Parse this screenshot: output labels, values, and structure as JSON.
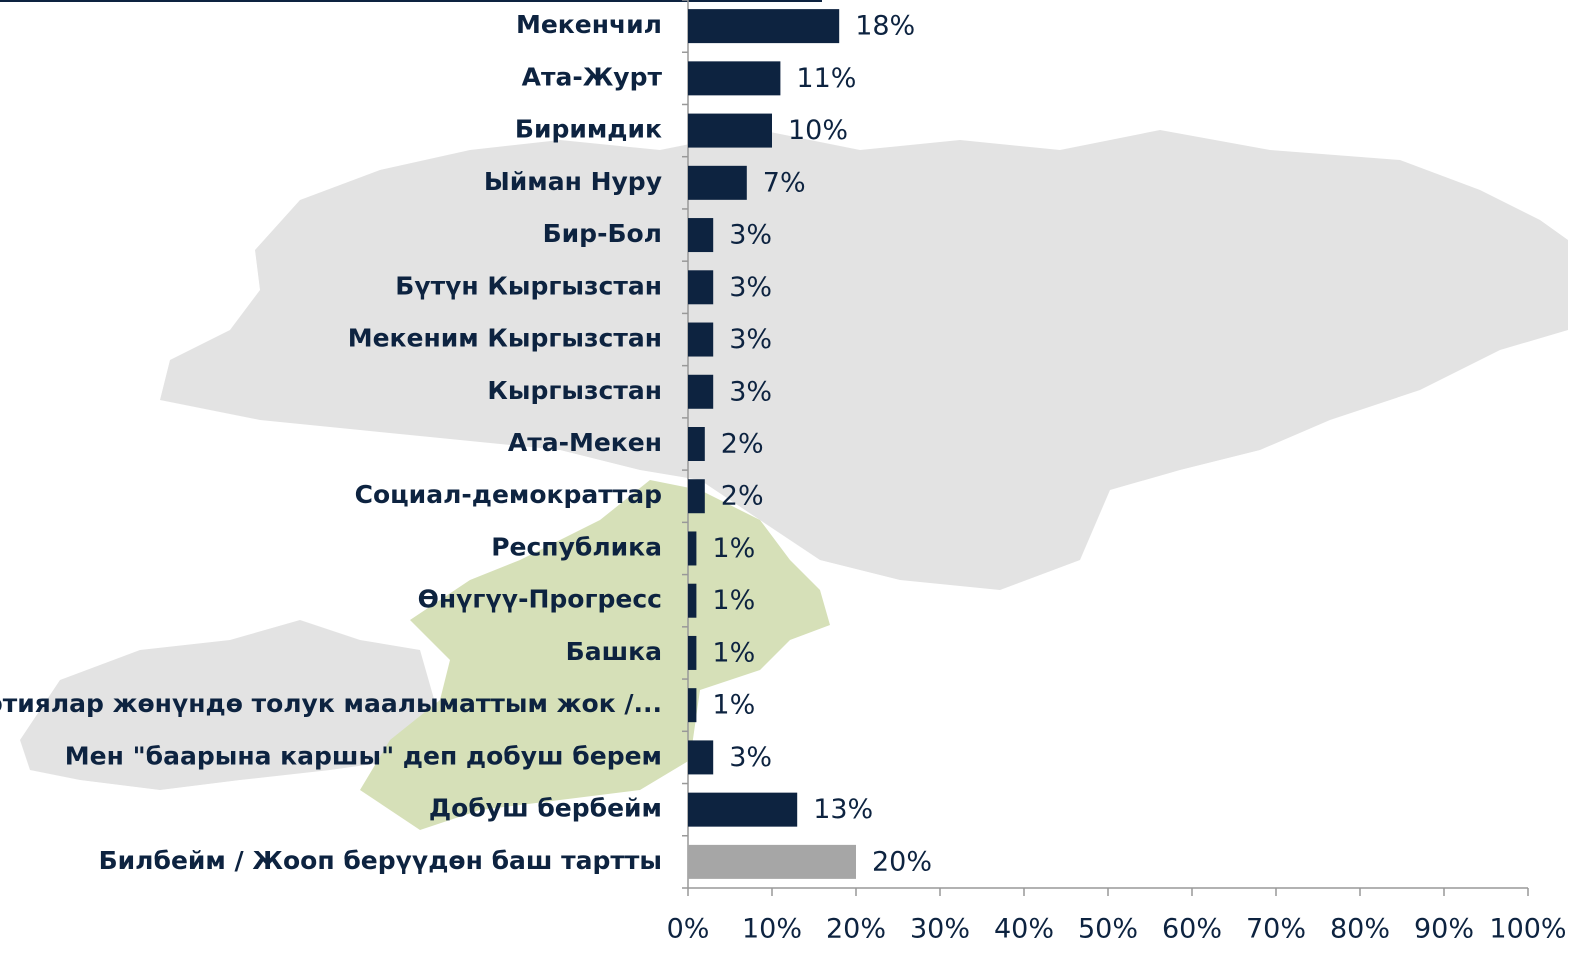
{
  "chart_data": {
    "type": "bar",
    "orientation": "horizontal",
    "categories": [
      "Мекенчил",
      "Ата-Журт",
      "Биримдик",
      "Ыйман Нуру",
      "Бир-Бол",
      "Бүтүн Кыргызстан",
      "Мекеним Кыргызстан",
      "Кыргызстан",
      "Ата-Мекен",
      "Социал-демократтар",
      "Республика",
      "Өнүгүү-Прогресс",
      "Башка",
      "Партиялар жөнүндө толук маалыматтым жок /...",
      "Мен \"баарына каршы\" деп добуш берем",
      "Добуш бербейм",
      "Билбейм / Жооп берүүдөн баш тартты"
    ],
    "values": [
      18,
      11,
      10,
      7,
      3,
      3,
      3,
      3,
      2,
      2,
      1,
      1,
      1,
      1,
      3,
      13,
      20
    ],
    "value_labels": [
      "18%",
      "11%",
      "10%",
      "7%",
      "3%",
      "3%",
      "3%",
      "3%",
      "2%",
      "2%",
      "1%",
      "1%",
      "1%",
      "1%",
      "3%",
      "13%",
      "20%"
    ],
    "colors": [
      "#0d2340",
      "#0d2340",
      "#0d2340",
      "#0d2340",
      "#0d2340",
      "#0d2340",
      "#0d2340",
      "#0d2340",
      "#0d2340",
      "#0d2340",
      "#0d2340",
      "#0d2340",
      "#0d2340",
      "#0d2340",
      "#0d2340",
      "#0d2340",
      "#a6a6a6"
    ],
    "xlim": [
      0,
      100
    ],
    "xticks": [
      {
        "value": 0,
        "label": "0%"
      },
      {
        "value": 10,
        "label": "10%"
      },
      {
        "value": 20,
        "label": "20%"
      },
      {
        "value": 30,
        "label": "30%"
      },
      {
        "value": 40,
        "label": "40%"
      },
      {
        "value": 50,
        "label": "50%"
      },
      {
        "value": 60,
        "label": "60%"
      },
      {
        "value": 70,
        "label": "70%"
      },
      {
        "value": 80,
        "label": "80%"
      },
      {
        "value": 90,
        "label": "90%"
      },
      {
        "value": 100,
        "label": "100%"
      }
    ]
  }
}
